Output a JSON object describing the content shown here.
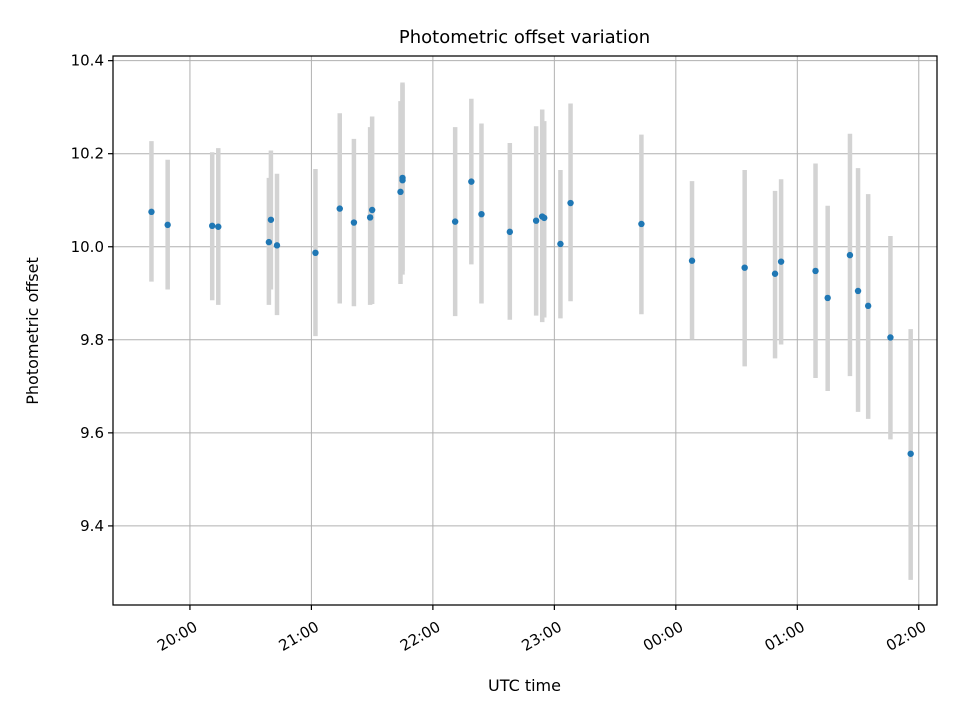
{
  "chart_data": {
    "type": "scatter",
    "title": "Photometric offset variation",
    "xlabel": "UTC time",
    "ylabel": "Photometric offset",
    "x_axis_kind": "time",
    "x_range": [
      "19:22",
      "02:09"
    ],
    "ylim": [
      9.23,
      10.41
    ],
    "grid": true,
    "legend": "none",
    "x_ticks": [
      "20:00",
      "21:00",
      "22:00",
      "23:00",
      "00:00",
      "01:00",
      "02:00"
    ],
    "y_ticks": [
      "9.4",
      "9.6",
      "9.8",
      "10.0",
      "10.2",
      "10.4"
    ],
    "colors": {
      "point": "#1f77b4",
      "errorbar": "#d3d3d3",
      "grid": "#b0b0b0"
    },
    "series": [
      {
        "points": [
          {
            "t": "19:41",
            "y": 10.075,
            "lo": 9.925,
            "hi": 10.227
          },
          {
            "t": "19:49",
            "y": 10.047,
            "lo": 9.908,
            "hi": 10.187
          },
          {
            "t": "20:11",
            "y": 10.045,
            "lo": 9.885,
            "hi": 10.203
          },
          {
            "t": "20:14",
            "y": 10.043,
            "lo": 9.875,
            "hi": 10.212
          },
          {
            "t": "20:39",
            "y": 10.01,
            "lo": 9.875,
            "hi": 10.148
          },
          {
            "t": "20:40",
            "y": 10.058,
            "lo": 9.908,
            "hi": 10.207
          },
          {
            "t": "20:43",
            "y": 10.003,
            "lo": 9.853,
            "hi": 10.157
          },
          {
            "t": "21:02",
            "y": 9.987,
            "lo": 9.808,
            "hi": 10.167
          },
          {
            "t": "21:14",
            "y": 10.082,
            "lo": 9.878,
            "hi": 10.287
          },
          {
            "t": "21:21",
            "y": 10.052,
            "lo": 9.872,
            "hi": 10.232
          },
          {
            "t": "21:29",
            "y": 10.063,
            "lo": 9.875,
            "hi": 10.257
          },
          {
            "t": "21:30",
            "y": 10.079,
            "lo": 9.877,
            "hi": 10.28
          },
          {
            "t": "21:44",
            "y": 10.118,
            "lo": 9.92,
            "hi": 10.313
          },
          {
            "t": "21:45",
            "y": 10.143,
            "lo": 9.94,
            "hi": 10.353
          },
          {
            "t": "21:45",
            "y": 10.148,
            "lo": 9.948,
            "hi": 10.349
          },
          {
            "t": "22:11",
            "y": 10.054,
            "lo": 9.851,
            "hi": 10.257
          },
          {
            "t": "22:19",
            "y": 10.14,
            "lo": 9.962,
            "hi": 10.318
          },
          {
            "t": "22:24",
            "y": 10.07,
            "lo": 9.878,
            "hi": 10.265
          },
          {
            "t": "22:38",
            "y": 10.032,
            "lo": 9.843,
            "hi": 10.223
          },
          {
            "t": "22:51",
            "y": 10.056,
            "lo": 9.852,
            "hi": 10.259
          },
          {
            "t": "22:54",
            "y": 10.065,
            "lo": 9.838,
            "hi": 10.295
          },
          {
            "t": "22:55",
            "y": 10.062,
            "lo": 9.848,
            "hi": 10.27
          },
          {
            "t": "23:03",
            "y": 10.006,
            "lo": 9.846,
            "hi": 10.165
          },
          {
            "t": "23:08",
            "y": 10.094,
            "lo": 9.883,
            "hi": 10.308
          },
          {
            "t": "23:43",
            "y": 10.049,
            "lo": 9.855,
            "hi": 10.241
          },
          {
            "t": "00:08",
            "y": 9.97,
            "lo": 9.8,
            "hi": 10.141
          },
          {
            "t": "00:34",
            "y": 9.955,
            "lo": 9.743,
            "hi": 10.165
          },
          {
            "t": "00:49",
            "y": 9.942,
            "lo": 9.76,
            "hi": 10.12
          },
          {
            "t": "00:52",
            "y": 9.968,
            "lo": 9.79,
            "hi": 10.145
          },
          {
            "t": "01:09",
            "y": 9.948,
            "lo": 9.718,
            "hi": 10.179
          },
          {
            "t": "01:15",
            "y": 9.89,
            "lo": 9.69,
            "hi": 10.088
          },
          {
            "t": "01:26",
            "y": 9.982,
            "lo": 9.722,
            "hi": 10.243
          },
          {
            "t": "01:30",
            "y": 9.905,
            "lo": 9.645,
            "hi": 10.169
          },
          {
            "t": "01:35",
            "y": 9.873,
            "lo": 9.63,
            "hi": 10.113
          },
          {
            "t": "01:46",
            "y": 9.805,
            "lo": 9.586,
            "hi": 10.023
          },
          {
            "t": "01:56",
            "y": 9.555,
            "lo": 9.284,
            "hi": 9.823
          }
        ]
      }
    ]
  }
}
